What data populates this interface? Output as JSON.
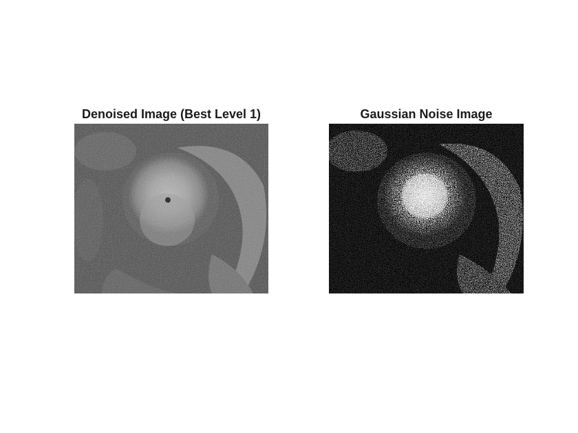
{
  "figure": {
    "panels": [
      {
        "title": "Denoised Image (Best Level 1)",
        "image_desc": "grayscale satellite image of a hurricane, moderately smoothed texture"
      },
      {
        "title": "Gaussian Noise Image",
        "image_desc": "grayscale satellite image of a hurricane with heavy salt-and-pepper-like noise"
      }
    ]
  }
}
